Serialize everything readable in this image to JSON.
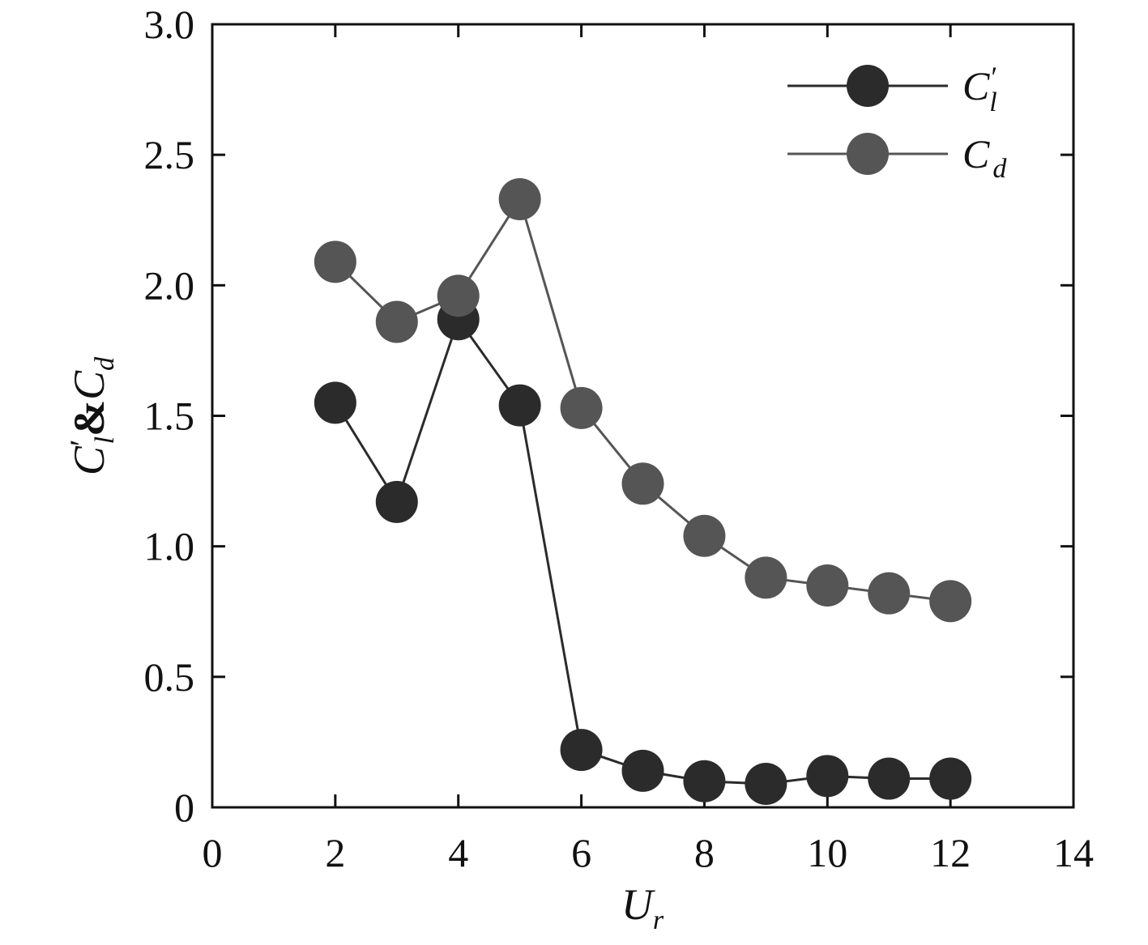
{
  "chart_data": {
    "type": "line",
    "xlabel": "U",
    "xlabel_sub": "r",
    "ylabel_parts": [
      "C",
      "′",
      "l",
      "&",
      "C",
      "d"
    ],
    "xlim": [
      0,
      14
    ],
    "ylim": [
      0,
      3.0
    ],
    "x_ticks": [
      0,
      2,
      4,
      6,
      8,
      10,
      12,
      14
    ],
    "x_tick_labels": [
      "0",
      "2",
      "4",
      "6",
      "8",
      "10",
      "12",
      "14"
    ],
    "y_ticks": [
      0,
      0.5,
      1.0,
      1.5,
      2.0,
      2.5,
      3.0
    ],
    "y_tick_labels": [
      "0",
      "0.5",
      "1.0",
      "1.5",
      "2.0",
      "2.5",
      "3.0"
    ],
    "grid": false,
    "legend_position": "top-right",
    "series": [
      {
        "name": "C′l",
        "legend_main": "C",
        "legend_prime": "′",
        "legend_sub": "l",
        "color": "#2b2b2b",
        "x": [
          2,
          3,
          4,
          5,
          6,
          7,
          8,
          9,
          10,
          11,
          12
        ],
        "y": [
          1.55,
          1.17,
          1.87,
          1.54,
          0.22,
          0.14,
          0.1,
          0.09,
          0.12,
          0.11,
          0.11
        ]
      },
      {
        "name": "Cd",
        "legend_main": "C",
        "legend_prime": "",
        "legend_sub": "d",
        "color": "#555555",
        "x": [
          2,
          3,
          4,
          5,
          6,
          7,
          8,
          9,
          10,
          11,
          12
        ],
        "y": [
          2.09,
          1.86,
          1.96,
          2.33,
          1.53,
          1.24,
          1.04,
          0.88,
          0.85,
          0.82,
          0.79
        ]
      }
    ]
  }
}
